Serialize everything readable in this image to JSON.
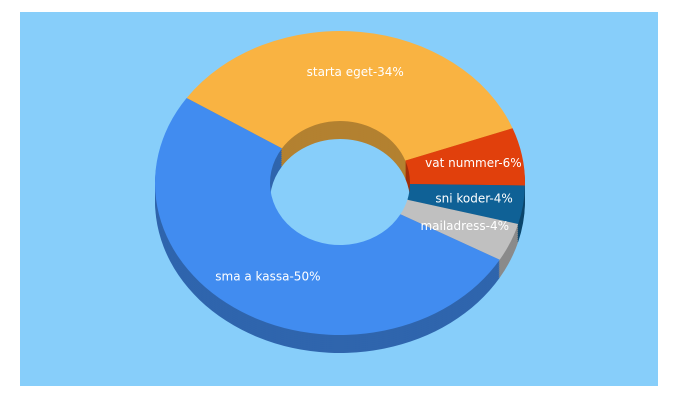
{
  "chart_data": {
    "type": "donut3d",
    "values": [
      34,
      6,
      4,
      4,
      50
    ],
    "value_labels": [
      "starta eget-34%",
      "vat nummer-6%",
      "sni koder-4%",
      "mailadress-4%",
      "sma a kassa-50%"
    ],
    "colors": [
      "#f9b342",
      "#e1400c",
      "#0f6196",
      "#c0c0c0",
      "#418cf0"
    ]
  }
}
